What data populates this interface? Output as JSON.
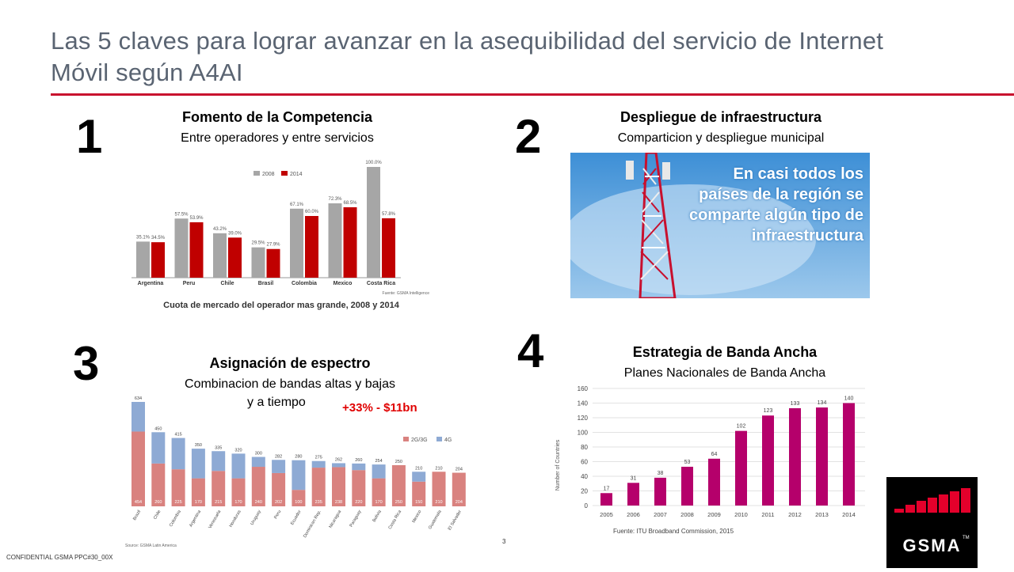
{
  "slide": {
    "title": "Las 5 claves para lograr avanzar en la asequibilidad del servicio de Internet Móvil según A4AI",
    "confidential": "CONFIDENTIAL GSMA PPC#30_00X",
    "page_number": "3",
    "accent_color": "#c8102e"
  },
  "sections": [
    {
      "number": "1",
      "title": "Fomento de la Competencia",
      "subtitle": "Entre operadores y entre servicios"
    },
    {
      "number": "2",
      "title": "Despliegue de infraestructura",
      "subtitle": "Comparticion y despliegue municipal"
    },
    {
      "number": "3",
      "title": "Asignación de espectro",
      "subtitle": "Combinacion de bandas altas y bajas",
      "subtitle2": "y a tiempo",
      "callout": "+33% - $11bn"
    },
    {
      "number": "4",
      "title": "Estrategia de Banda Ancha",
      "subtitle": "Planes Nacionales de Banda Ancha"
    }
  ],
  "infra_image": {
    "overlay_text": "En casi todos los países de la región se comparte algún tipo de infraestructura"
  },
  "logo": {
    "text": "GSMA",
    "tm": "TM"
  },
  "chart_data": [
    {
      "type": "bar",
      "title": "Cuota de mercado del operador mas grande, 2008 y 2014",
      "source": "Fuente: GSMA Intelligence",
      "categories": [
        "Argentina",
        "Peru",
        "Chile",
        "Brasil",
        "Colombia",
        "Mexico",
        "Costa Rica"
      ],
      "series": [
        {
          "name": "2008",
          "color": "#a6a6a6",
          "values": [
            35.1,
            57.5,
            43.2,
            29.5,
            67.1,
            72.3,
            100.0
          ],
          "labels": [
            "35.1%",
            "57.5%",
            "43.2%",
            "29.5%",
            "67.1%",
            "72.3%",
            "100.0%"
          ]
        },
        {
          "name": "2014",
          "color": "#c00000",
          "values": [
            34.5,
            53.9,
            39.0,
            27.9,
            60.0,
            68.5,
            57.8
          ],
          "labels": [
            "34.5%",
            "53.9%",
            "39.0%",
            "27.9%",
            "60.0%",
            "68.5%",
            "57.8%"
          ]
        }
      ],
      "axis_break_category": "Costa Rica"
    },
    {
      "type": "bar",
      "stacked": true,
      "source": "Source: GSMA Latin America",
      "categories": [
        "Brazil",
        "Chile",
        "Colombia",
        "Argentina",
        "Venezuela",
        "Honduras",
        "Uruguay",
        "Peru",
        "Ecuador",
        "Dominican Rep.",
        "Nicaragua",
        "Paraguay",
        "Bolivia",
        "Costa Rica",
        "Mexico",
        "Guatemala",
        "El Salvador"
      ],
      "totals": [
        634,
        450,
        415,
        350,
        335,
        320,
        300,
        282,
        280,
        275,
        262,
        260,
        254,
        250,
        210,
        210,
        204
      ],
      "series": [
        {
          "name": "2G/3G",
          "color": "#d9827f",
          "values": [
            454,
            260,
            225,
            170,
            215,
            170,
            240,
            202,
            100,
            235,
            238,
            220,
            170,
            250,
            150,
            210,
            204
          ]
        },
        {
          "name": "4G",
          "color": "#8eaad4",
          "values": [
            180,
            190,
            190,
            180,
            120,
            150,
            60,
            80,
            180,
            40,
            24,
            40,
            84,
            0,
            60,
            0,
            0
          ]
        }
      ],
      "ylim": [
        0,
        650
      ]
    },
    {
      "type": "bar",
      "source": "Fuente: ITU Broadband Commission, 2015",
      "ylabel": "Number of Countries",
      "categories": [
        "2005",
        "2006",
        "2007",
        "2008",
        "2009",
        "2010",
        "2011",
        "2012",
        "2013",
        "2014"
      ],
      "values": [
        17,
        31,
        38,
        53,
        64,
        102,
        123,
        133,
        134,
        140
      ],
      "yticks": [
        0,
        20,
        40,
        60,
        80,
        100,
        120,
        140,
        160
      ],
      "ylim": [
        0,
        160
      ],
      "color": "#b5006b"
    }
  ]
}
